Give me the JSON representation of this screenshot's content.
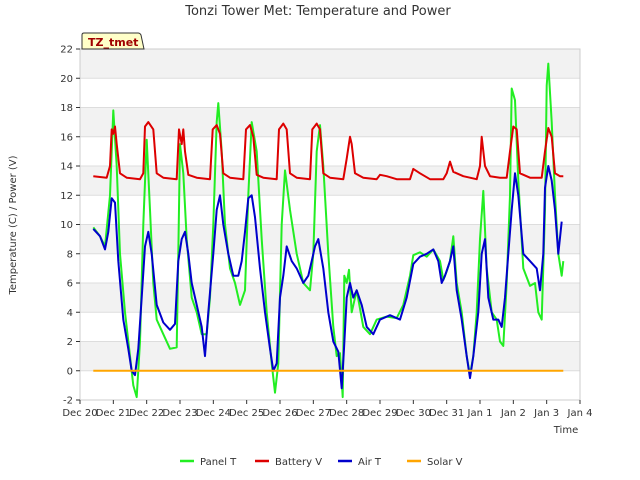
{
  "chart_data": {
    "type": "line",
    "title": "Tonzi Tower Met: Temperature and Power",
    "xlabel": "Time",
    "ylabel": "Temperature (C) / Power (V)",
    "tag": "TZ_tmet",
    "ylim": [
      -2,
      22
    ],
    "yticks": [
      -2,
      0,
      2,
      4,
      6,
      8,
      10,
      12,
      14,
      16,
      18,
      20,
      22
    ],
    "xlim": [
      0,
      15
    ],
    "xticks": [
      {
        "label": "Dec 20",
        "x": 0
      },
      {
        "label": "Dec 21",
        "x": 1
      },
      {
        "label": "Dec 22",
        "x": 2
      },
      {
        "label": "Dec 23",
        "x": 3
      },
      {
        "label": "Dec 24",
        "x": 4
      },
      {
        "label": "Dec 25",
        "x": 5
      },
      {
        "label": "Dec 26",
        "x": 6
      },
      {
        "label": "Dec 27",
        "x": 7
      },
      {
        "label": "Dec 28",
        "x": 8
      },
      {
        "label": "Dec 29",
        "x": 9
      },
      {
        "label": "Dec 30",
        "x": 10
      },
      {
        "label": "Dec 31",
        "x": 11
      },
      {
        "label": "Jan 1",
        "x": 12
      },
      {
        "label": "Jan 2",
        "x": 13
      },
      {
        "label": "Jan 3",
        "x": 14
      },
      {
        "label": "Jan 4",
        "x": 15
      }
    ],
    "series": [
      {
        "name": "Panel T",
        "color": "#22ee22",
        "points": [
          [
            0.4,
            9.8
          ],
          [
            0.6,
            9.2
          ],
          [
            0.75,
            8.5
          ],
          [
            0.9,
            12
          ],
          [
            1.0,
            17.8
          ],
          [
            1.1,
            14
          ],
          [
            1.2,
            8
          ],
          [
            1.35,
            4
          ],
          [
            1.5,
            1
          ],
          [
            1.6,
            -1
          ],
          [
            1.7,
            -1.8
          ],
          [
            1.8,
            2
          ],
          [
            1.9,
            10
          ],
          [
            2.0,
            15.8
          ],
          [
            2.1,
            11
          ],
          [
            2.2,
            6
          ],
          [
            2.3,
            3.5
          ],
          [
            2.5,
            2.5
          ],
          [
            2.7,
            1.5
          ],
          [
            2.9,
            1.6
          ],
          [
            2.95,
            8
          ],
          [
            3.0,
            15.5
          ],
          [
            3.1,
            13.5
          ],
          [
            3.2,
            9
          ],
          [
            3.35,
            5
          ],
          [
            3.5,
            4
          ],
          [
            3.65,
            2.5
          ],
          [
            3.8,
            2.5
          ],
          [
            3.9,
            5
          ],
          [
            4.0,
            10
          ],
          [
            4.1,
            17
          ],
          [
            4.15,
            18.3
          ],
          [
            4.25,
            15
          ],
          [
            4.35,
            10
          ],
          [
            4.5,
            7
          ],
          [
            4.65,
            6
          ],
          [
            4.8,
            4.5
          ],
          [
            4.95,
            5.5
          ],
          [
            5.05,
            12
          ],
          [
            5.15,
            17
          ],
          [
            5.3,
            15
          ],
          [
            5.45,
            9
          ],
          [
            5.6,
            4
          ],
          [
            5.75,
            0.5
          ],
          [
            5.85,
            -1.5
          ],
          [
            5.95,
            0.5
          ],
          [
            6.05,
            10
          ],
          [
            6.15,
            13.7
          ],
          [
            6.3,
            11
          ],
          [
            6.5,
            8
          ],
          [
            6.7,
            6
          ],
          [
            6.9,
            5.5
          ],
          [
            7.0,
            8
          ],
          [
            7.1,
            15
          ],
          [
            7.2,
            16.8
          ],
          [
            7.3,
            14
          ],
          [
            7.45,
            8
          ],
          [
            7.6,
            3
          ],
          [
            7.7,
            1
          ],
          [
            7.8,
            1.2
          ],
          [
            7.88,
            -1.8
          ],
          [
            7.93,
            6.5
          ],
          [
            8.0,
            6
          ],
          [
            8.07,
            6.9
          ],
          [
            8.15,
            4
          ],
          [
            8.3,
            5.5
          ],
          [
            8.5,
            3
          ],
          [
            8.7,
            2.5
          ],
          [
            8.9,
            3.5
          ],
          [
            9.2,
            3.7
          ],
          [
            9.5,
            3.6
          ],
          [
            9.7,
            4.5
          ],
          [
            9.9,
            6.5
          ],
          [
            10.0,
            7.9
          ],
          [
            10.2,
            8.1
          ],
          [
            10.4,
            7.8
          ],
          [
            10.6,
            8.3
          ],
          [
            10.8,
            7.5
          ],
          [
            10.9,
            6.2
          ],
          [
            11.0,
            6.8
          ],
          [
            11.1,
            7.5
          ],
          [
            11.2,
            9.2
          ],
          [
            11.3,
            6
          ],
          [
            11.45,
            4
          ],
          [
            11.6,
            1
          ],
          [
            11.7,
            -0.3
          ],
          [
            11.8,
            1
          ],
          [
            11.9,
            4
          ],
          [
            12.0,
            9
          ],
          [
            12.1,
            12.3
          ],
          [
            12.2,
            7
          ],
          [
            12.35,
            4
          ],
          [
            12.5,
            3.5
          ],
          [
            12.6,
            2
          ],
          [
            12.7,
            1.7
          ],
          [
            12.8,
            6
          ],
          [
            12.9,
            12
          ],
          [
            12.95,
            19.3
          ],
          [
            13.05,
            18.5
          ],
          [
            13.15,
            13
          ],
          [
            13.3,
            7
          ],
          [
            13.5,
            5.8
          ],
          [
            13.65,
            6
          ],
          [
            13.75,
            4
          ],
          [
            13.85,
            3.5
          ],
          [
            13.95,
            11
          ],
          [
            14.0,
            19.5
          ],
          [
            14.05,
            21
          ],
          [
            14.15,
            17
          ],
          [
            14.25,
            12
          ],
          [
            14.35,
            8
          ],
          [
            14.45,
            6.5
          ],
          [
            14.5,
            7.5
          ]
        ]
      },
      {
        "name": "Battery V",
        "color": "#dd0000",
        "points": [
          [
            0.4,
            13.3
          ],
          [
            0.8,
            13.2
          ],
          [
            0.9,
            14
          ],
          [
            0.95,
            16.5
          ],
          [
            1.0,
            16.2
          ],
          [
            1.05,
            16.7
          ],
          [
            1.1,
            15.5
          ],
          [
            1.2,
            13.5
          ],
          [
            1.4,
            13.2
          ],
          [
            1.8,
            13.1
          ],
          [
            1.9,
            13.5
          ],
          [
            1.95,
            16.7
          ],
          [
            2.05,
            17
          ],
          [
            2.2,
            16.5
          ],
          [
            2.3,
            13.5
          ],
          [
            2.5,
            13.2
          ],
          [
            2.9,
            13.1
          ],
          [
            2.97,
            16.5
          ],
          [
            3.05,
            15.5
          ],
          [
            3.1,
            16.5
          ],
          [
            3.15,
            15
          ],
          [
            3.25,
            13.4
          ],
          [
            3.5,
            13.2
          ],
          [
            3.9,
            13.1
          ],
          [
            3.98,
            16.5
          ],
          [
            4.1,
            16.8
          ],
          [
            4.2,
            16.2
          ],
          [
            4.3,
            13.5
          ],
          [
            4.5,
            13.2
          ],
          [
            4.9,
            13.1
          ],
          [
            4.98,
            16.5
          ],
          [
            5.1,
            16.8
          ],
          [
            5.2,
            16
          ],
          [
            5.3,
            13.4
          ],
          [
            5.5,
            13.2
          ],
          [
            5.9,
            13.1
          ],
          [
            5.97,
            16.5
          ],
          [
            6.1,
            16.9
          ],
          [
            6.2,
            16.5
          ],
          [
            6.3,
            13.5
          ],
          [
            6.5,
            13.2
          ],
          [
            6.9,
            13.1
          ],
          [
            6.97,
            16.5
          ],
          [
            7.1,
            16.9
          ],
          [
            7.2,
            16.5
          ],
          [
            7.3,
            13.5
          ],
          [
            7.5,
            13.2
          ],
          [
            7.9,
            13.1
          ],
          [
            8.0,
            14.5
          ],
          [
            8.1,
            16
          ],
          [
            8.15,
            15.5
          ],
          [
            8.25,
            13.5
          ],
          [
            8.5,
            13.2
          ],
          [
            8.9,
            13.1
          ],
          [
            9.0,
            13.4
          ],
          [
            9.2,
            13.3
          ],
          [
            9.5,
            13.1
          ],
          [
            9.9,
            13.1
          ],
          [
            10.0,
            13.8
          ],
          [
            10.2,
            13.5
          ],
          [
            10.5,
            13.1
          ],
          [
            10.9,
            13.1
          ],
          [
            11.0,
            13.5
          ],
          [
            11.1,
            14.3
          ],
          [
            11.2,
            13.6
          ],
          [
            11.5,
            13.3
          ],
          [
            11.9,
            13.1
          ],
          [
            12.0,
            14
          ],
          [
            12.05,
            16
          ],
          [
            12.15,
            14
          ],
          [
            12.3,
            13.3
          ],
          [
            12.6,
            13.2
          ],
          [
            12.8,
            13.2
          ],
          [
            12.9,
            15
          ],
          [
            13.0,
            16.7
          ],
          [
            13.1,
            16.5
          ],
          [
            13.2,
            13.5
          ],
          [
            13.5,
            13.2
          ],
          [
            13.85,
            13.2
          ],
          [
            13.95,
            15
          ],
          [
            14.05,
            16.6
          ],
          [
            14.15,
            16
          ],
          [
            14.25,
            13.5
          ],
          [
            14.4,
            13.3
          ],
          [
            14.5,
            13.3
          ]
        ]
      },
      {
        "name": "Air T",
        "color": "#0000cc",
        "points": [
          [
            0.4,
            9.7
          ],
          [
            0.6,
            9.2
          ],
          [
            0.75,
            8.3
          ],
          [
            0.85,
            9.5
          ],
          [
            0.95,
            11.8
          ],
          [
            1.05,
            11.5
          ],
          [
            1.15,
            7.5
          ],
          [
            1.3,
            3.5
          ],
          [
            1.45,
            1.5
          ],
          [
            1.55,
            0
          ],
          [
            1.65,
            -0.3
          ],
          [
            1.75,
            1.5
          ],
          [
            1.85,
            5
          ],
          [
            1.95,
            8.5
          ],
          [
            2.05,
            9.5
          ],
          [
            2.15,
            8
          ],
          [
            2.3,
            4.5
          ],
          [
            2.5,
            3.3
          ],
          [
            2.7,
            2.8
          ],
          [
            2.85,
            3.2
          ],
          [
            2.95,
            7.5
          ],
          [
            3.05,
            9
          ],
          [
            3.15,
            9.5
          ],
          [
            3.25,
            8
          ],
          [
            3.35,
            6
          ],
          [
            3.5,
            4.5
          ],
          [
            3.65,
            3
          ],
          [
            3.75,
            1
          ],
          [
            3.85,
            4
          ],
          [
            4.0,
            8
          ],
          [
            4.1,
            11
          ],
          [
            4.2,
            12
          ],
          [
            4.3,
            10
          ],
          [
            4.45,
            8
          ],
          [
            4.6,
            6.5
          ],
          [
            4.75,
            6.5
          ],
          [
            4.85,
            7.5
          ],
          [
            4.95,
            9.5
          ],
          [
            5.05,
            11.8
          ],
          [
            5.15,
            12
          ],
          [
            5.25,
            10.5
          ],
          [
            5.4,
            7
          ],
          [
            5.55,
            4
          ],
          [
            5.7,
            1.5
          ],
          [
            5.8,
            0
          ],
          [
            5.9,
            0.5
          ],
          [
            6.0,
            5
          ],
          [
            6.1,
            6.5
          ],
          [
            6.2,
            8.5
          ],
          [
            6.35,
            7.5
          ],
          [
            6.5,
            7
          ],
          [
            6.7,
            6
          ],
          [
            6.85,
            6.5
          ],
          [
            6.95,
            7.5
          ],
          [
            7.05,
            8.5
          ],
          [
            7.15,
            9
          ],
          [
            7.3,
            7
          ],
          [
            7.45,
            4
          ],
          [
            7.6,
            2
          ],
          [
            7.75,
            1.3
          ],
          [
            7.85,
            -1.2
          ],
          [
            7.92,
            1.5
          ],
          [
            8.0,
            5
          ],
          [
            8.1,
            6
          ],
          [
            8.2,
            5
          ],
          [
            8.3,
            5.5
          ],
          [
            8.45,
            4.5
          ],
          [
            8.6,
            3
          ],
          [
            8.8,
            2.5
          ],
          [
            9.0,
            3.5
          ],
          [
            9.3,
            3.8
          ],
          [
            9.6,
            3.5
          ],
          [
            9.8,
            5
          ],
          [
            10.0,
            7.3
          ],
          [
            10.2,
            7.8
          ],
          [
            10.4,
            8
          ],
          [
            10.6,
            8.3
          ],
          [
            10.75,
            7.5
          ],
          [
            10.85,
            6
          ],
          [
            10.95,
            6.5
          ],
          [
            11.1,
            7.5
          ],
          [
            11.2,
            8.5
          ],
          [
            11.3,
            5.5
          ],
          [
            11.45,
            3.5
          ],
          [
            11.6,
            1
          ],
          [
            11.7,
            -0.5
          ],
          [
            11.8,
            1
          ],
          [
            11.95,
            4
          ],
          [
            12.05,
            8
          ],
          [
            12.15,
            9
          ],
          [
            12.25,
            5
          ],
          [
            12.4,
            3.5
          ],
          [
            12.55,
            3.5
          ],
          [
            12.65,
            3
          ],
          [
            12.75,
            5
          ],
          [
            12.85,
            8
          ],
          [
            12.95,
            11
          ],
          [
            13.05,
            13.5
          ],
          [
            13.15,
            12
          ],
          [
            13.3,
            8
          ],
          [
            13.5,
            7.5
          ],
          [
            13.7,
            7
          ],
          [
            13.8,
            5.5
          ],
          [
            13.9,
            8
          ],
          [
            13.95,
            12.5
          ],
          [
            14.05,
            14
          ],
          [
            14.15,
            13
          ],
          [
            14.25,
            11
          ],
          [
            14.35,
            8
          ],
          [
            14.45,
            10.2
          ]
        ]
      },
      {
        "name": "Solar V",
        "color": "#ffa500",
        "points": [
          [
            0.4,
            0
          ],
          [
            14.5,
            0
          ]
        ]
      }
    ]
  }
}
